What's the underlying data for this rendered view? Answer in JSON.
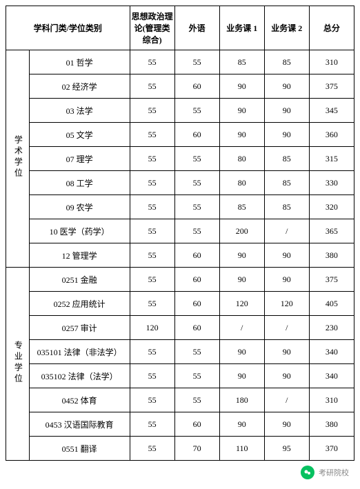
{
  "headers": {
    "category_col": "学科门类/学位类别",
    "col1": "思想政治理论(管理类综合)",
    "col2": "外语",
    "col3": "业务课 1",
    "col4": "业务课 2",
    "col5": "总分"
  },
  "groups": [
    {
      "label": "学术学位",
      "rows": [
        {
          "subject": "01 哲学",
          "c1": "55",
          "c2": "55",
          "c3": "85",
          "c4": "85",
          "c5": "310"
        },
        {
          "subject": "02 经济学",
          "c1": "55",
          "c2": "60",
          "c3": "90",
          "c4": "90",
          "c5": "375"
        },
        {
          "subject": "03 法学",
          "c1": "55",
          "c2": "55",
          "c3": "90",
          "c4": "90",
          "c5": "345"
        },
        {
          "subject": "05 文学",
          "c1": "55",
          "c2": "60",
          "c3": "90",
          "c4": "90",
          "c5": "360"
        },
        {
          "subject": "07 理学",
          "c1": "55",
          "c2": "55",
          "c3": "80",
          "c4": "85",
          "c5": "315"
        },
        {
          "subject": "08 工学",
          "c1": "55",
          "c2": "55",
          "c3": "80",
          "c4": "85",
          "c5": "330"
        },
        {
          "subject": "09 农学",
          "c1": "55",
          "c2": "55",
          "c3": "85",
          "c4": "85",
          "c5": "320"
        },
        {
          "subject": "10 医学（药学）",
          "c1": "55",
          "c2": "55",
          "c3": "200",
          "c4": "/",
          "c5": "365"
        },
        {
          "subject": "12 管理学",
          "c1": "55",
          "c2": "60",
          "c3": "90",
          "c4": "90",
          "c5": "380"
        }
      ]
    },
    {
      "label": "专业学位",
      "rows": [
        {
          "subject": "0251 金融",
          "c1": "55",
          "c2": "60",
          "c3": "90",
          "c4": "90",
          "c5": "375"
        },
        {
          "subject": "0252 应用统计",
          "c1": "55",
          "c2": "60",
          "c3": "120",
          "c4": "120",
          "c5": "405"
        },
        {
          "subject": "0257 审计",
          "c1": "120",
          "c2": "60",
          "c3": "/",
          "c4": "/",
          "c5": "230"
        },
        {
          "subject": "035101 法律（非法学）",
          "c1": "55",
          "c2": "55",
          "c3": "90",
          "c4": "90",
          "c5": "340"
        },
        {
          "subject": "035102 法律（法学）",
          "c1": "55",
          "c2": "55",
          "c3": "90",
          "c4": "90",
          "c5": "340"
        },
        {
          "subject": "0452 体育",
          "c1": "55",
          "c2": "55",
          "c3": "180",
          "c4": "/",
          "c5": "310"
        },
        {
          "subject": "0453 汉语国际教育",
          "c1": "55",
          "c2": "60",
          "c3": "90",
          "c4": "90",
          "c5": "380"
        },
        {
          "subject": "0551 翻译",
          "c1": "55",
          "c2": "70",
          "c3": "110",
          "c4": "95",
          "c5": "370"
        }
      ]
    }
  ],
  "watermark": {
    "text": "考研院校"
  },
  "style": {
    "border_color": "#000000",
    "font_size": 12,
    "header_font_size": 12,
    "background": "#ffffff"
  }
}
